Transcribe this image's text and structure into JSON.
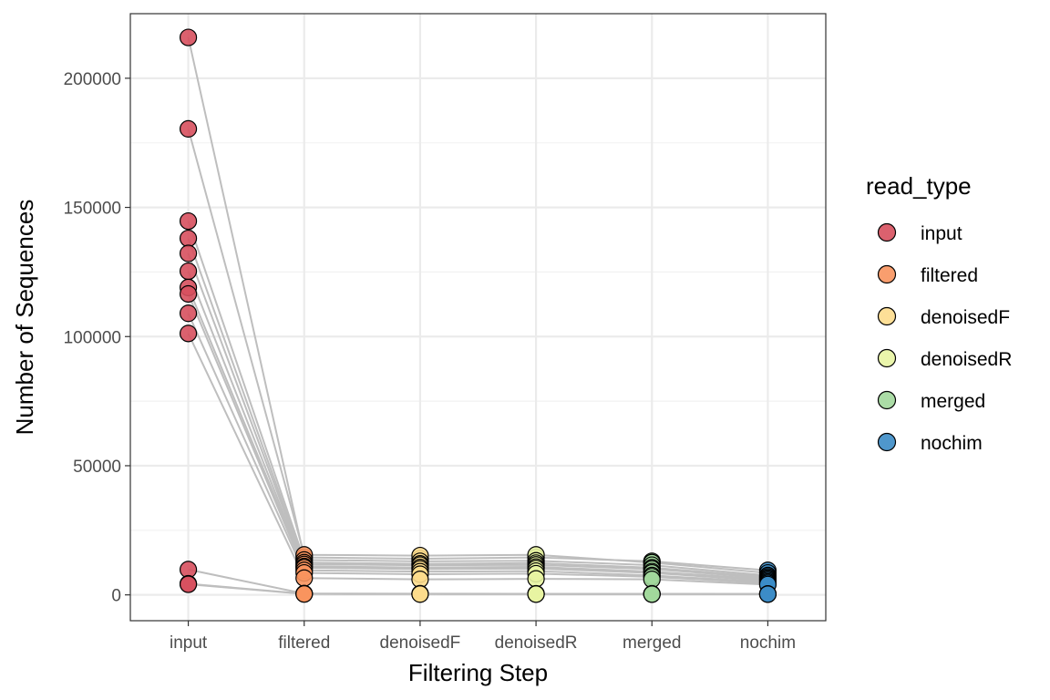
{
  "chart_data": {
    "type": "scatter",
    "xlabel": "Filtering Step",
    "ylabel": "Number of Sequences",
    "categories": [
      "input",
      "filtered",
      "denoisedF",
      "denoisedR",
      "merged",
      "nochim"
    ],
    "ylim": [
      -10000,
      225000
    ],
    "yticks": [
      0,
      50000,
      100000,
      150000,
      200000
    ],
    "ytick_labels": [
      "0",
      "50000",
      "100000",
      "150000",
      "200000"
    ],
    "grid": true,
    "legend": {
      "title": "read_type",
      "placement": "right",
      "entries": [
        "input",
        "filtered",
        "denoisedF",
        "denoisedR",
        "merged",
        "nochim"
      ]
    },
    "colors": {
      "input": "#d7505e",
      "filtered": "#f8945e",
      "denoisedF": "#fddc8c",
      "denoisedR": "#e8f4a2",
      "merged": "#a2d89c",
      "nochim": "#3c8cc6"
    },
    "line_color": "#bebebe",
    "samples": [
      [
        215800,
        14500,
        14000,
        14500,
        13000,
        9500
      ],
      [
        180400,
        15500,
        15200,
        15500,
        12500,
        8500
      ],
      [
        144700,
        13500,
        13000,
        13200,
        11500,
        7500
      ],
      [
        138000,
        12500,
        12000,
        12300,
        10500,
        7000
      ],
      [
        132200,
        11800,
        11500,
        11600,
        10000,
        6500
      ],
      [
        125300,
        11000,
        10600,
        10800,
        9000,
        6000
      ],
      [
        119000,
        10500,
        10000,
        10200,
        8500,
        5500
      ],
      [
        116500,
        9500,
        9000,
        9200,
        7500,
        5000
      ],
      [
        109000,
        8500,
        8000,
        8200,
        7000,
        4500
      ],
      [
        101200,
        6500,
        6000,
        6200,
        6000,
        4000
      ],
      [
        9800,
        500,
        450,
        420,
        400,
        380
      ],
      [
        4300,
        400,
        350,
        330,
        310,
        300
      ],
      [
        4100,
        350,
        320,
        300,
        290,
        280
      ]
    ]
  }
}
